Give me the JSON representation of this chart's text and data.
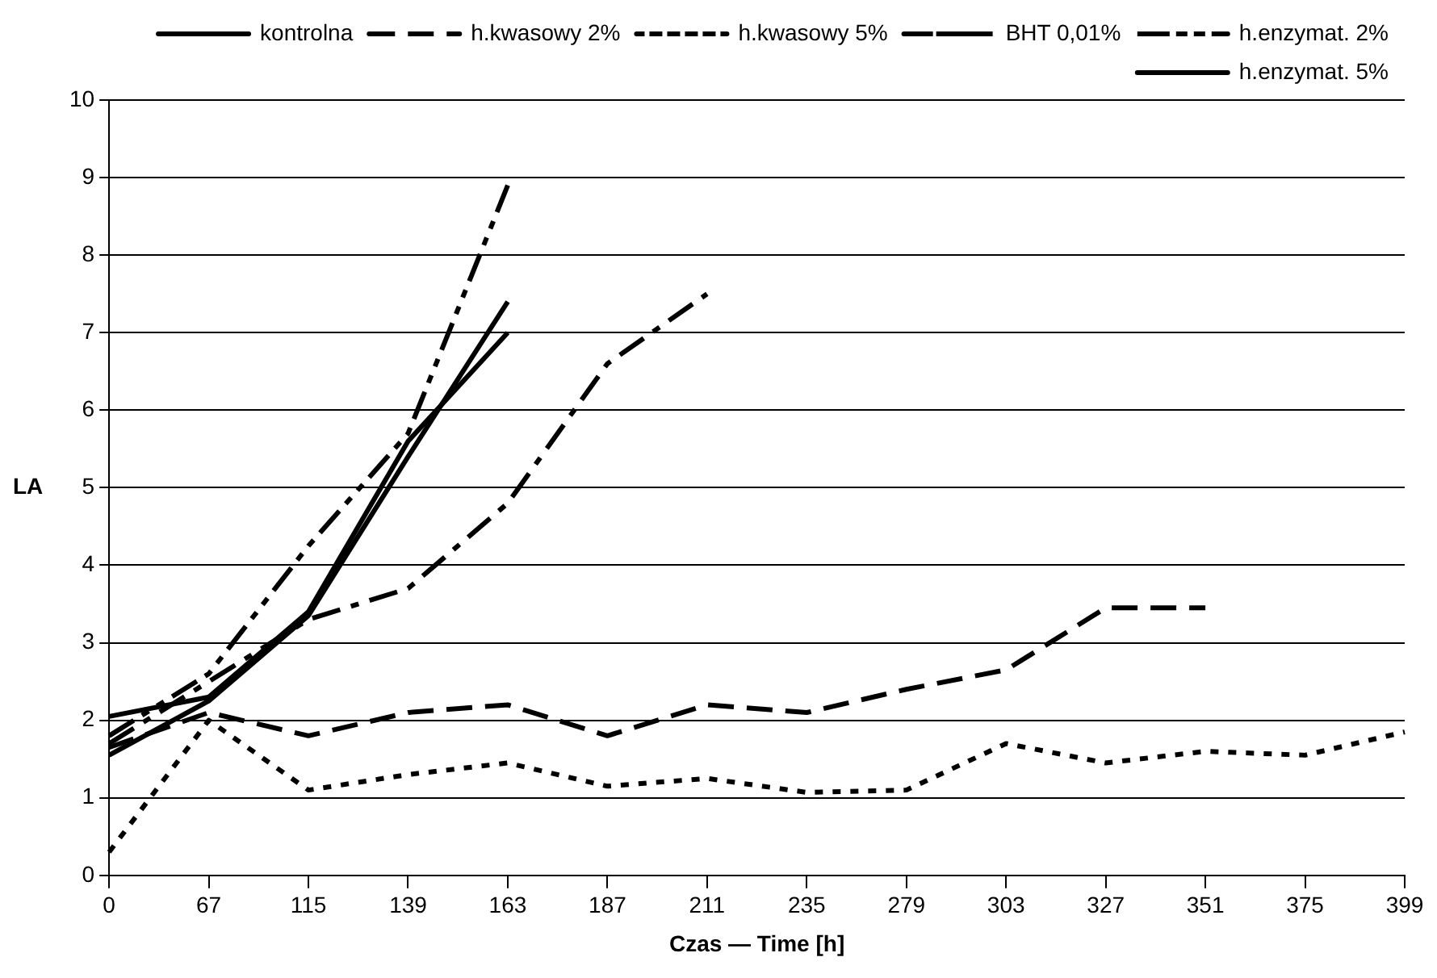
{
  "chart_data": {
    "type": "line",
    "xlabel": "Czas — Time [h]",
    "ylabel": "LA",
    "categories": [
      "0",
      "67",
      "115",
      "139",
      "163",
      "187",
      "211",
      "235",
      "279",
      "303",
      "327",
      "351",
      "375",
      "399"
    ],
    "ylim": [
      0,
      10
    ],
    "yticks": [
      0,
      1,
      2,
      3,
      4,
      5,
      6,
      7,
      8,
      9,
      10
    ],
    "grid": "y",
    "legend": "top right",
    "marker": "none",
    "series": [
      {
        "name": "kontrolna",
        "color": "#000000",
        "line_style": "solid",
        "values": [
          2.05,
          2.3,
          3.4,
          5.6,
          7.0,
          null,
          null,
          null,
          null,
          null,
          null,
          null,
          null,
          null
        ]
      },
      {
        "name": "h.kwasowy 2%",
        "color": "#000000",
        "line_style": "dashed",
        "values": [
          1.65,
          2.1,
          1.8,
          2.1,
          2.2,
          1.8,
          2.2,
          2.1,
          2.4,
          2.65,
          3.45,
          3.45,
          null,
          null
        ]
      },
      {
        "name": "h.kwasowy 5%",
        "color": "#000000",
        "line_style": "dotted",
        "values": [
          0.3,
          2.0,
          1.1,
          1.3,
          1.45,
          1.15,
          1.25,
          1.07,
          1.1,
          1.7,
          1.45,
          1.6,
          1.55,
          1.85
        ]
      },
      {
        "name": "BHT 0,01%",
        "color": "#000000",
        "line_style": "dashdot",
        "values": [
          1.7,
          2.5,
          3.3,
          3.7,
          4.8,
          6.6,
          7.5,
          null,
          null,
          null,
          null,
          null,
          null,
          null
        ]
      },
      {
        "name": "h.enzymat. 2%",
        "color": "#000000",
        "line_style": "dashdotdot",
        "values": [
          1.8,
          2.6,
          4.25,
          5.7,
          8.9,
          null,
          null,
          null,
          null,
          null,
          null,
          null,
          null,
          null
        ]
      },
      {
        "name": "h.enzymat. 5%",
        "color": "#000000",
        "line_style": "solid",
        "values": [
          1.55,
          2.25,
          3.35,
          5.4,
          7.4,
          null,
          null,
          null,
          null,
          null,
          null,
          null,
          null,
          null
        ]
      }
    ]
  }
}
